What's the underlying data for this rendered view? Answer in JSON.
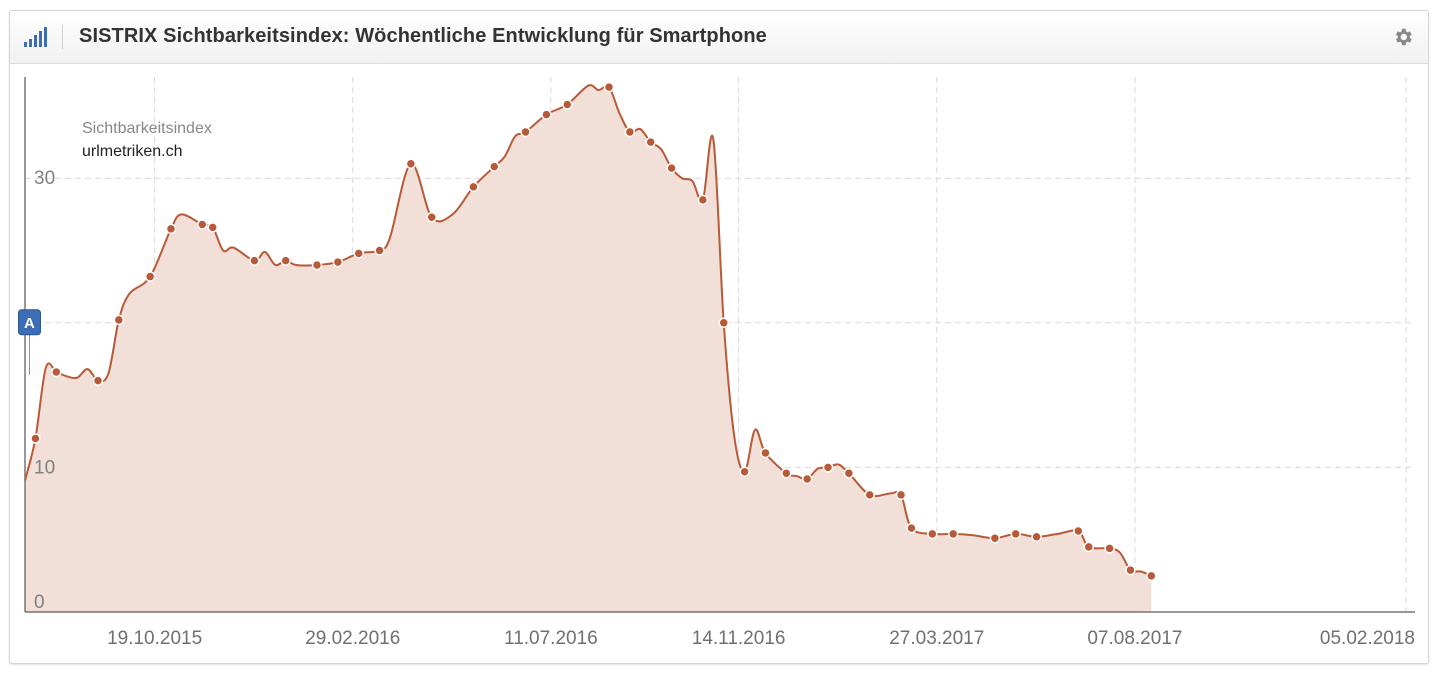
{
  "header": {
    "title": "SISTRIX Sichtbarkeitsindex: Wöchentliche Entwicklung für Smartphone",
    "chart_icon": "bar-signal-icon",
    "settings_icon": "gear-icon"
  },
  "colors": {
    "line": "#b85a38",
    "area": "#f2dfd8",
    "point": "#b85a38",
    "grid": "#d9d9d9",
    "marker": "#3d6eb5"
  },
  "chart_data": {
    "type": "area",
    "title": "SISTRIX Sichtbarkeitsindex: Wöchentliche Entwicklung für Smartphone",
    "legend": {
      "title": "Sichtbarkeitsindex",
      "series": "urlmetriken.ch",
      "placement": "top-left"
    },
    "y_ticks": [
      {
        "value": 0,
        "label": "0"
      },
      {
        "value": 10,
        "label": "10"
      },
      {
        "value": 30,
        "label": "30"
      }
    ],
    "ylim": [
      0,
      37
    ],
    "x_ticks": [
      "19.10.2015",
      "29.02.2016",
      "11.07.2016",
      "14.11.2016",
      "27.03.2017",
      "07.08.2017",
      "05.02.2018"
    ],
    "xlim": [
      "2015-07-24",
      "2018-02-11"
    ],
    "grid": true,
    "annotation": {
      "label": "A",
      "date": "2015-07-27",
      "value": 20
    },
    "series": [
      {
        "name": "urlmetriken.ch",
        "points": [
          [
            "2015-07-24",
            9.1
          ],
          [
            "2015-07-31",
            12.0
          ],
          [
            "2015-08-07",
            16.9
          ],
          [
            "2015-08-14",
            16.6
          ],
          [
            "2015-08-21",
            16.3
          ],
          [
            "2015-08-28",
            16.2
          ],
          [
            "2015-09-04",
            16.8
          ],
          [
            "2015-09-11",
            16.0
          ],
          [
            "2015-09-18",
            16.5
          ],
          [
            "2015-09-25",
            20.2
          ],
          [
            "2015-10-02",
            22.0
          ],
          [
            "2015-10-16",
            23.2
          ],
          [
            "2015-10-30",
            26.5
          ],
          [
            "2015-11-06",
            27.5
          ],
          [
            "2015-11-20",
            26.8
          ],
          [
            "2015-11-27",
            26.6
          ],
          [
            "2015-12-04",
            25.0
          ],
          [
            "2015-12-11",
            25.2
          ],
          [
            "2015-12-25",
            24.3
          ],
          [
            "2016-01-01",
            24.9
          ],
          [
            "2016-01-08",
            24.0
          ],
          [
            "2016-01-15",
            24.3
          ],
          [
            "2016-01-22",
            24.0
          ],
          [
            "2016-02-05",
            24.0
          ],
          [
            "2016-02-19",
            24.2
          ],
          [
            "2016-03-04",
            24.8
          ],
          [
            "2016-03-18",
            25.0
          ],
          [
            "2016-03-25",
            25.9
          ],
          [
            "2016-04-08",
            31.0
          ],
          [
            "2016-04-22",
            27.3
          ],
          [
            "2016-05-06",
            27.5
          ],
          [
            "2016-05-20",
            29.4
          ],
          [
            "2016-06-03",
            30.8
          ],
          [
            "2016-06-10",
            31.5
          ],
          [
            "2016-06-17",
            32.9
          ],
          [
            "2016-06-24",
            33.2
          ],
          [
            "2016-07-08",
            34.4
          ],
          [
            "2016-07-22",
            35.1
          ],
          [
            "2016-08-05",
            36.4
          ],
          [
            "2016-08-12",
            36.1
          ],
          [
            "2016-08-19",
            36.3
          ],
          [
            "2016-08-26",
            34.5
          ],
          [
            "2016-09-02",
            33.2
          ],
          [
            "2016-09-09",
            33.4
          ],
          [
            "2016-09-16",
            32.5
          ],
          [
            "2016-09-23",
            32.0
          ],
          [
            "2016-09-30",
            30.7
          ],
          [
            "2016-10-07",
            30.0
          ],
          [
            "2016-10-14",
            29.8
          ],
          [
            "2016-10-21",
            28.5
          ],
          [
            "2016-10-28",
            32.7
          ],
          [
            "2016-11-04",
            20.0
          ],
          [
            "2016-11-11",
            12.2
          ],
          [
            "2016-11-18",
            9.7
          ],
          [
            "2016-11-25",
            12.6
          ],
          [
            "2016-12-02",
            11.0
          ],
          [
            "2016-12-16",
            9.6
          ],
          [
            "2016-12-23",
            9.4
          ],
          [
            "2016-12-30",
            9.2
          ],
          [
            "2017-01-06",
            9.9
          ],
          [
            "2017-01-13",
            10.0
          ],
          [
            "2017-01-20",
            10.2
          ],
          [
            "2017-01-27",
            9.6
          ],
          [
            "2017-02-10",
            8.1
          ],
          [
            "2017-02-24",
            8.2
          ],
          [
            "2017-03-03",
            8.1
          ],
          [
            "2017-03-10",
            5.8
          ],
          [
            "2017-03-24",
            5.4
          ],
          [
            "2017-04-07",
            5.4
          ],
          [
            "2017-04-21",
            5.3
          ],
          [
            "2017-05-05",
            5.1
          ],
          [
            "2017-05-19",
            5.4
          ],
          [
            "2017-06-02",
            5.2
          ],
          [
            "2017-06-16",
            5.4
          ],
          [
            "2017-06-30",
            5.6
          ],
          [
            "2017-07-07",
            4.5
          ],
          [
            "2017-07-21",
            4.4
          ],
          [
            "2017-07-28",
            4.1
          ],
          [
            "2017-08-04",
            2.9
          ],
          [
            "2017-08-11",
            2.8
          ],
          [
            "2017-08-18",
            2.5
          ]
        ],
        "markers": [
          [
            "2015-07-31",
            12.0
          ],
          [
            "2015-08-14",
            16.6
          ],
          [
            "2015-09-11",
            16.0
          ],
          [
            "2015-09-25",
            20.2
          ],
          [
            "2015-10-16",
            23.2
          ],
          [
            "2015-10-30",
            26.5
          ],
          [
            "2015-11-20",
            26.8
          ],
          [
            "2015-11-27",
            26.6
          ],
          [
            "2015-12-25",
            24.3
          ],
          [
            "2016-01-15",
            24.3
          ],
          [
            "2016-02-05",
            24.0
          ],
          [
            "2016-02-19",
            24.2
          ],
          [
            "2016-03-04",
            24.8
          ],
          [
            "2016-03-18",
            25.0
          ],
          [
            "2016-04-08",
            31.0
          ],
          [
            "2016-04-22",
            27.3
          ],
          [
            "2016-05-20",
            29.4
          ],
          [
            "2016-06-03",
            30.8
          ],
          [
            "2016-06-24",
            33.2
          ],
          [
            "2016-07-08",
            34.4
          ],
          [
            "2016-07-22",
            35.1
          ],
          [
            "2016-08-19",
            36.3
          ],
          [
            "2016-09-02",
            33.2
          ],
          [
            "2016-09-16",
            32.5
          ],
          [
            "2016-09-30",
            30.7
          ],
          [
            "2016-10-21",
            28.5
          ],
          [
            "2016-11-04",
            20.0
          ],
          [
            "2016-11-18",
            9.7
          ],
          [
            "2016-12-02",
            11.0
          ],
          [
            "2016-12-16",
            9.6
          ],
          [
            "2016-12-30",
            9.2
          ],
          [
            "2017-01-13",
            10.0
          ],
          [
            "2017-01-27",
            9.6
          ],
          [
            "2017-02-10",
            8.1
          ],
          [
            "2017-03-03",
            8.1
          ],
          [
            "2017-03-10",
            5.8
          ],
          [
            "2017-03-24",
            5.4
          ],
          [
            "2017-04-07",
            5.4
          ],
          [
            "2017-05-05",
            5.1
          ],
          [
            "2017-05-19",
            5.4
          ],
          [
            "2017-06-02",
            5.2
          ],
          [
            "2017-06-30",
            5.6
          ],
          [
            "2017-07-07",
            4.5
          ],
          [
            "2017-07-21",
            4.4
          ],
          [
            "2017-08-04",
            2.9
          ],
          [
            "2017-08-18",
            2.5
          ]
        ]
      }
    ]
  }
}
